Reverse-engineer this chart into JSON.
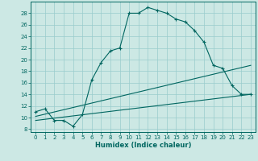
{
  "title": "",
  "xlabel": "Humidex (Indice chaleur)",
  "ylabel": "",
  "bg_color": "#cce8e4",
  "line_color": "#006660",
  "grid_color": "#99cccc",
  "xlim": [
    -0.5,
    23.5
  ],
  "ylim": [
    7.5,
    30
  ],
  "xticks": [
    0,
    1,
    2,
    3,
    4,
    5,
    6,
    7,
    8,
    9,
    10,
    11,
    12,
    13,
    14,
    15,
    16,
    17,
    18,
    19,
    20,
    21,
    22,
    23
  ],
  "yticks": [
    8,
    10,
    12,
    14,
    16,
    18,
    20,
    22,
    24,
    26,
    28
  ],
  "series1_x": [
    0,
    1,
    2,
    3,
    4,
    5,
    6,
    7,
    8,
    9,
    10,
    11,
    12,
    13,
    14,
    15,
    16,
    17,
    18,
    19,
    20,
    21,
    22,
    23
  ],
  "series1_y": [
    11.0,
    11.5,
    9.5,
    9.5,
    8.5,
    10.5,
    16.5,
    19.5,
    21.5,
    22.0,
    28.0,
    28.0,
    29.0,
    28.5,
    28.0,
    27.0,
    26.5,
    25.0,
    23.0,
    19.0,
    18.5,
    15.5,
    14.0,
    14.0
  ],
  "series2_x": [
    0,
    23
  ],
  "series2_y": [
    10.2,
    19.0
  ],
  "series3_x": [
    0,
    23
  ],
  "series3_y": [
    9.5,
    14.0
  ],
  "figsize": [
    3.2,
    2.0
  ],
  "dpi": 100
}
